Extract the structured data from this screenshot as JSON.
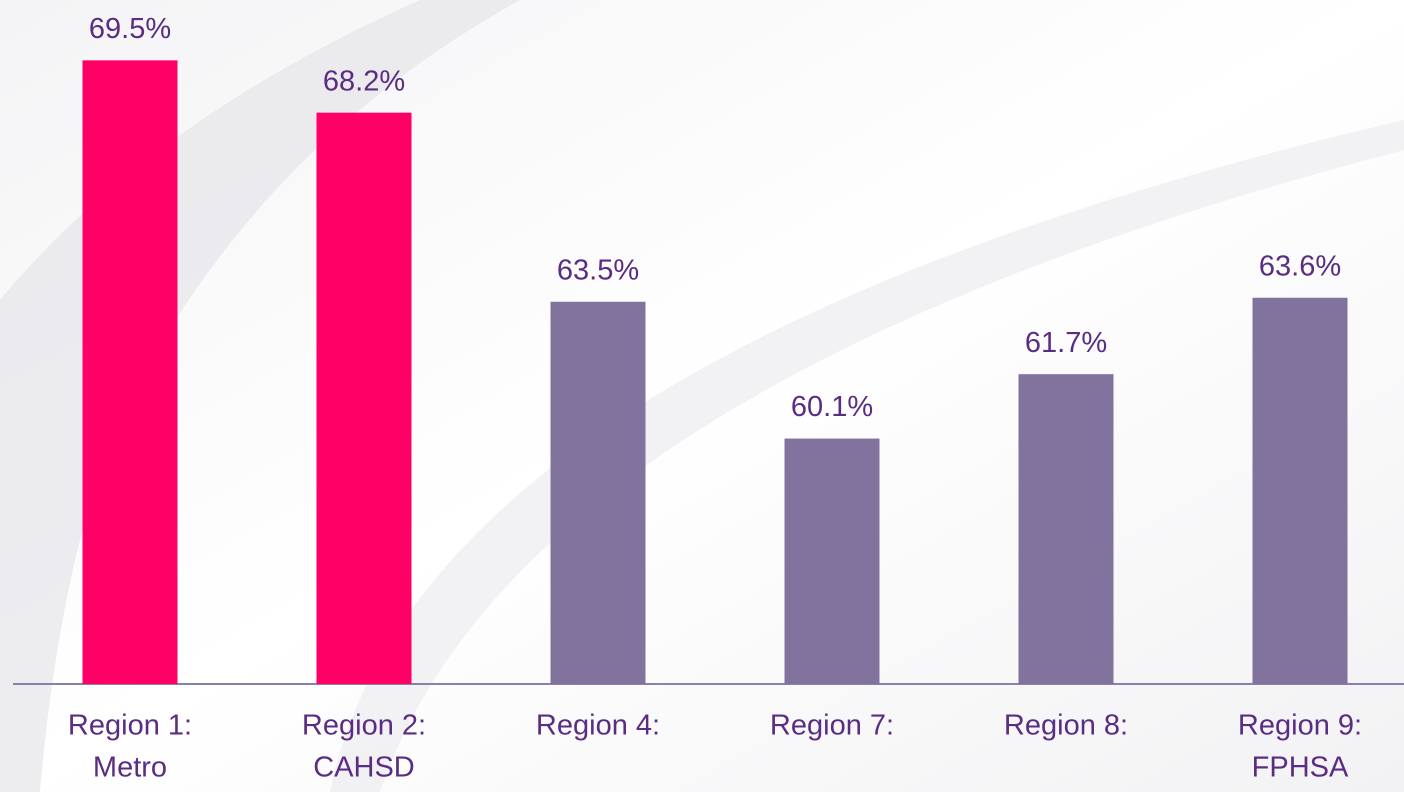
{
  "chart_data": {
    "type": "bar",
    "categories": [
      [
        "Region 1:",
        "Metro"
      ],
      [
        "Region 2:",
        "CAHSD"
      ],
      [
        "Region 4:"
      ],
      [
        "Region 7:"
      ],
      [
        "Region 8:"
      ],
      [
        "Region 9:",
        "FPHSA"
      ]
    ],
    "values": [
      69.5,
      68.2,
      63.5,
      60.1,
      61.7,
      63.6
    ],
    "value_labels": [
      "69.5%",
      "68.2%",
      "63.5%",
      "60.1%",
      "61.7%",
      "63.6%"
    ],
    "colors": [
      "#ff0066",
      "#ff0066",
      "#81729e",
      "#81729e",
      "#81729e",
      "#81729e"
    ],
    "ylim": [
      54,
      71
    ]
  }
}
